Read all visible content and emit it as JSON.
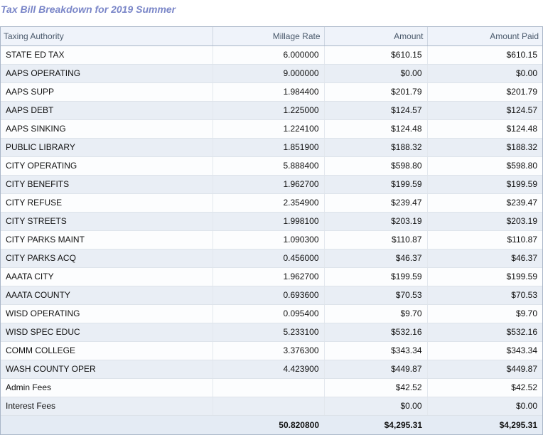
{
  "title": "Tax Bill Breakdown for 2019 Summer",
  "columns": {
    "authority": "Taxing Authority",
    "millage": "Millage Rate",
    "amount": "Amount",
    "paid": "Amount Paid"
  },
  "rows": [
    {
      "authority": "STATE ED TAX",
      "millage": "6.000000",
      "amount": "$610.15",
      "paid": "$610.15"
    },
    {
      "authority": "AAPS OPERATING",
      "millage": "9.000000",
      "amount": "$0.00",
      "paid": "$0.00"
    },
    {
      "authority": "AAPS SUPP",
      "millage": "1.984400",
      "amount": "$201.79",
      "paid": "$201.79"
    },
    {
      "authority": "AAPS DEBT",
      "millage": "1.225000",
      "amount": "$124.57",
      "paid": "$124.57"
    },
    {
      "authority": "AAPS SINKING",
      "millage": "1.224100",
      "amount": "$124.48",
      "paid": "$124.48"
    },
    {
      "authority": "PUBLIC LIBRARY",
      "millage": "1.851900",
      "amount": "$188.32",
      "paid": "$188.32"
    },
    {
      "authority": "CITY OPERATING",
      "millage": "5.888400",
      "amount": "$598.80",
      "paid": "$598.80"
    },
    {
      "authority": "CITY BENEFITS",
      "millage": "1.962700",
      "amount": "$199.59",
      "paid": "$199.59"
    },
    {
      "authority": "CITY REFUSE",
      "millage": "2.354900",
      "amount": "$239.47",
      "paid": "$239.47"
    },
    {
      "authority": "CITY STREETS",
      "millage": "1.998100",
      "amount": "$203.19",
      "paid": "$203.19"
    },
    {
      "authority": "CITY PARKS MAINT",
      "millage": "1.090300",
      "amount": "$110.87",
      "paid": "$110.87"
    },
    {
      "authority": "CITY PARKS ACQ",
      "millage": "0.456000",
      "amount": "$46.37",
      "paid": "$46.37"
    },
    {
      "authority": "AAATA CITY",
      "millage": "1.962700",
      "amount": "$199.59",
      "paid": "$199.59"
    },
    {
      "authority": "AAATA COUNTY",
      "millage": "0.693600",
      "amount": "$70.53",
      "paid": "$70.53"
    },
    {
      "authority": "WISD OPERATING",
      "millage": "0.095400",
      "amount": "$9.70",
      "paid": "$9.70"
    },
    {
      "authority": "WISD SPEC EDUC",
      "millage": "5.233100",
      "amount": "$532.16",
      "paid": "$532.16"
    },
    {
      "authority": "COMM COLLEGE",
      "millage": "3.376300",
      "amount": "$343.34",
      "paid": "$343.34"
    },
    {
      "authority": "WASH COUNTY OPER",
      "millage": "4.423900",
      "amount": "$449.87",
      "paid": "$449.87"
    },
    {
      "authority": "Admin Fees",
      "millage": "",
      "amount": "$42.52",
      "paid": "$42.52"
    },
    {
      "authority": "Interest Fees",
      "millage": "",
      "amount": "$0.00",
      "paid": "$0.00"
    }
  ],
  "totals": {
    "millage": "50.820800",
    "amount": "$4,295.31",
    "paid": "$4,295.31"
  }
}
